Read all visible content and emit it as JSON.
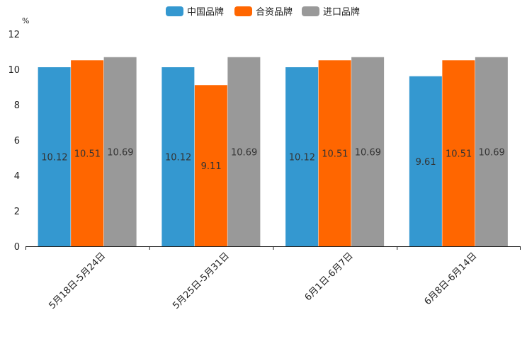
{
  "chart_data": {
    "type": "bar",
    "unit": "%",
    "categories": [
      "5月18日-5月24日",
      "5月25日-5月31日",
      "6月1日-6月7日",
      "6月8日-6月14日"
    ],
    "series": [
      {
        "name": "中国品牌",
        "color": "#3498d0",
        "values": [
          10.12,
          10.12,
          10.12,
          9.61
        ]
      },
      {
        "name": "合资品牌",
        "color": "#ff6600",
        "values": [
          10.51,
          9.11,
          10.51,
          10.51
        ]
      },
      {
        "name": "进口品牌",
        "color": "#999999",
        "values": [
          10.69,
          10.69,
          10.69,
          10.69
        ]
      }
    ],
    "ylim": [
      0,
      12
    ],
    "yticks": [
      0,
      2,
      4,
      6,
      8,
      10,
      12
    ],
    "legend_position": "top-center",
    "grid": false
  }
}
